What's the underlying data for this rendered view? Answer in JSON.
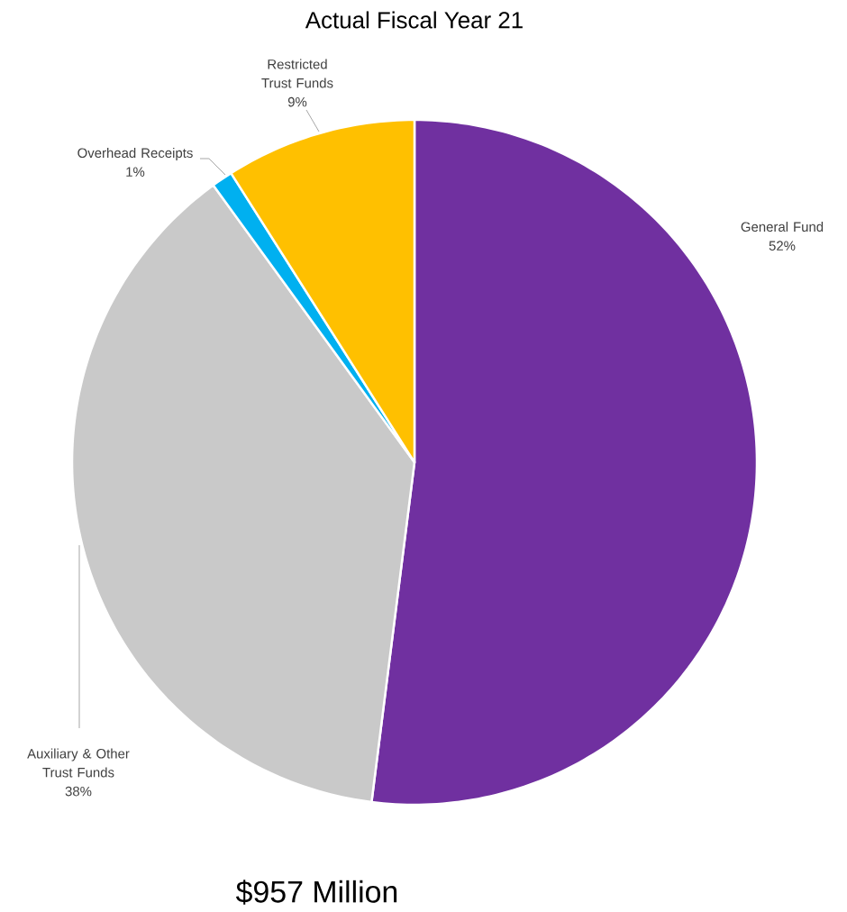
{
  "chart_data": {
    "type": "pie",
    "title": "Actual Fiscal Year 21",
    "categories": [
      "General Fund",
      "Auxiliary & Other Trust Funds",
      "Overhead Receipts",
      "Restricted Trust Funds"
    ],
    "values": [
      52,
      38,
      1,
      9
    ],
    "value_labels": [
      "52%",
      "38%",
      "1%",
      "9%"
    ],
    "colors": [
      "#7030a0",
      "#c9c9c9",
      "#00b0f0",
      "#ffc000"
    ],
    "annotations": [
      "$957 Million"
    ]
  }
}
